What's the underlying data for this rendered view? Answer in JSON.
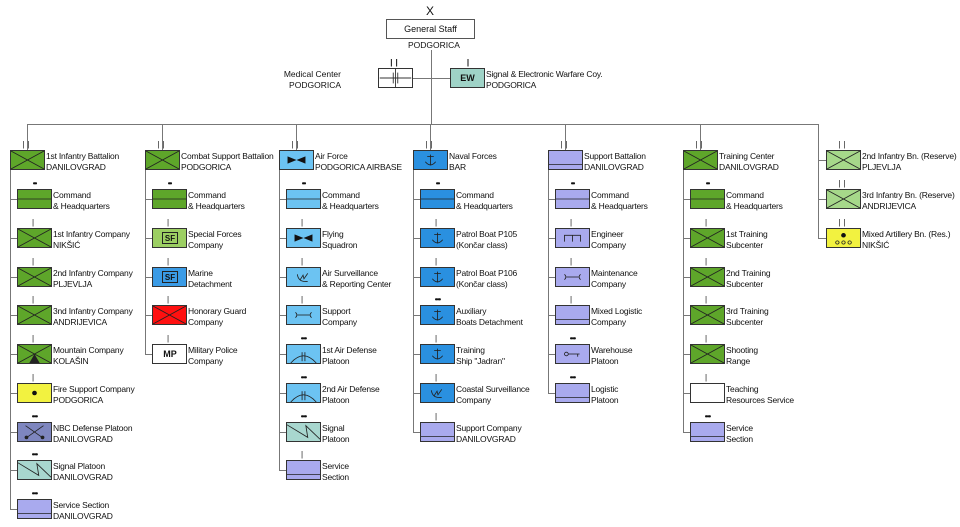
{
  "top": {
    "rank_mark": "X",
    "title": "General Staff",
    "location": "PODGORICA"
  },
  "medical": {
    "lines": [
      "Medical Center",
      "PODGORICA"
    ],
    "symbol": "medical"
  },
  "signal_ew": {
    "lines": [
      "Signal & Electronic Warfare Coy.",
      "PODGORICA"
    ],
    "symbol": "ew",
    "symbol_text": "EW",
    "color": "#9fd3c7"
  },
  "colors": {
    "infantry": "#5ea62a",
    "light_green": "#9ccf63",
    "marine": "#3a9be6",
    "guard": "#ff1010",
    "air": "#6cc3f2",
    "navy": "#2a90e0",
    "support": "#a9aaee",
    "yellow": "#f2f240",
    "nbc": "#7e86bf",
    "signal": "#a8d7cf",
    "reserve": "#a6d88a",
    "white": "#ffffff"
  },
  "columns": [
    {
      "head": {
        "lines": [
          "1st Infantry Battalion",
          "DANILOVGRAD"
        ],
        "symbol": "infantry",
        "color": "#5ea62a",
        "mark": "||"
      },
      "units": [
        {
          "lines": [
            "Command",
            "& Headquarters"
          ],
          "symbol": "hq",
          "color": "#5ea62a",
          "mark": "••"
        },
        {
          "lines": [
            "1st Infantry Company",
            "NIKŠIĆ"
          ],
          "symbol": "infantry",
          "color": "#5ea62a",
          "mark": "|"
        },
        {
          "lines": [
            "2nd Infantry Company",
            "PLJEVLJA"
          ],
          "symbol": "infantry",
          "color": "#5ea62a",
          "mark": "|"
        },
        {
          "lines": [
            "3nd Infantry Company",
            "ANDRIJEVICA"
          ],
          "symbol": "infantry",
          "color": "#5ea62a",
          "mark": "|"
        },
        {
          "lines": [
            "Mountain Company",
            "KOLAŠIN"
          ],
          "symbol": "mountain",
          "color": "#5ea62a",
          "mark": "|"
        },
        {
          "lines": [
            "Fire Support Company",
            "PODGORICA"
          ],
          "symbol": "artillery",
          "color": "#f2f240",
          "mark": "|"
        },
        {
          "lines": [
            "NBC Defense Platoon",
            "DANILOVGRAD"
          ],
          "symbol": "nbc",
          "color": "#7e86bf",
          "mark": "•••"
        },
        {
          "lines": [
            "Signal Platoon",
            "DANILOVGRAD"
          ],
          "symbol": "signal",
          "color": "#a8d7cf",
          "mark": "•••"
        },
        {
          "lines": [
            "Service Section",
            "DANILOVGRAD"
          ],
          "symbol": "service",
          "color": "#a9aaee",
          "mark": "•••"
        }
      ]
    },
    {
      "head": {
        "lines": [
          "Combat Support Battalion",
          "PODGORICA"
        ],
        "symbol": "infantry",
        "color": "#5ea62a",
        "mark": "||"
      },
      "units": [
        {
          "lines": [
            "Command",
            "& Headquarters"
          ],
          "symbol": "hq",
          "color": "#5ea62a",
          "mark": "••"
        },
        {
          "lines": [
            "Special Forces",
            "Company"
          ],
          "symbol": "text",
          "symbol_text": "SF",
          "color": "#9ccf63",
          "mark": "|"
        },
        {
          "lines": [
            "Marine",
            "Detachment"
          ],
          "symbol": "text",
          "symbol_text": "SF",
          "color": "#3a9be6",
          "mark": "|"
        },
        {
          "lines": [
            "Honorary Guard",
            "Company"
          ],
          "symbol": "infantry",
          "color": "#ff1010",
          "mark": "|"
        },
        {
          "lines": [
            "Military Police",
            "Company"
          ],
          "symbol": "text",
          "symbol_text": "MP",
          "color": "#ffffff",
          "mark": "|"
        }
      ]
    },
    {
      "head": {
        "lines": [
          "Air Force",
          "PODGORICA AIRBASE"
        ],
        "symbol": "aviation",
        "color": "#6cc3f2",
        "mark": "||"
      },
      "units": [
        {
          "lines": [
            "Command",
            "& Headquarters"
          ],
          "symbol": "hq",
          "color": "#6cc3f2",
          "mark": "••"
        },
        {
          "lines": [
            "Flying",
            "Squadron"
          ],
          "symbol": "aviation",
          "color": "#6cc3f2",
          "mark": "|"
        },
        {
          "lines": [
            "Air Surveillance",
            "& Reporting Center"
          ],
          "symbol": "radar",
          "color": "#6cc3f2",
          "mark": "|"
        },
        {
          "lines": [
            "Support",
            "Company"
          ],
          "symbol": "maintenance",
          "color": "#6cc3f2",
          "mark": "|"
        },
        {
          "lines": [
            "1st Air Defense",
            "Platoon"
          ],
          "symbol": "airdefense",
          "color": "#6cc3f2",
          "mark": "•••"
        },
        {
          "lines": [
            "2nd Air Defense",
            "Platoon"
          ],
          "symbol": "airdefense",
          "color": "#6cc3f2",
          "mark": "•••"
        },
        {
          "lines": [
            "Signal",
            "Platoon"
          ],
          "symbol": "signal",
          "color": "#a8d7cf",
          "mark": "•••"
        },
        {
          "lines": [
            "Service",
            "Section"
          ],
          "symbol": "service",
          "color": "#a9aaee",
          "mark": "|"
        }
      ]
    },
    {
      "head": {
        "lines": [
          "Naval Forces",
          "BAR"
        ],
        "symbol": "naval",
        "color": "#2a90e0",
        "mark": "||"
      },
      "units": [
        {
          "lines": [
            "Command",
            "& Headquarters"
          ],
          "symbol": "hq",
          "color": "#2a90e0",
          "mark": "••"
        },
        {
          "lines": [
            "Patrol Boat P105",
            "(Končar class)"
          ],
          "symbol": "naval",
          "color": "#2a90e0",
          "mark": "|"
        },
        {
          "lines": [
            "Patrol Boat P106",
            "(Končar class)"
          ],
          "symbol": "naval",
          "color": "#2a90e0",
          "mark": "|"
        },
        {
          "lines": [
            "Auxiliary",
            "Boats Detachment"
          ],
          "symbol": "naval",
          "color": "#2a90e0",
          "mark": "•••"
        },
        {
          "lines": [
            "Training",
            "Ship \"Jadran\""
          ],
          "symbol": "naval",
          "color": "#2a90e0",
          "mark": "|"
        },
        {
          "lines": [
            "Coastal Surveillance",
            "Company"
          ],
          "symbol": "radar",
          "color": "#2a90e0",
          "mark": "|"
        },
        {
          "lines": [
            "Support Company",
            "DANILOVGRAD"
          ],
          "symbol": "service",
          "color": "#a9aaee",
          "mark": "|"
        }
      ]
    },
    {
      "head": {
        "lines": [
          "Support Battalion",
          "DANILOVGRAD"
        ],
        "symbol": "service",
        "color": "#a9aaee",
        "mark": "||"
      },
      "units": [
        {
          "lines": [
            "Command",
            "& Headquarters"
          ],
          "symbol": "hq",
          "color": "#a9aaee",
          "mark": "••"
        },
        {
          "lines": [
            "Engineer",
            "Company"
          ],
          "symbol": "engineer",
          "color": "#a9aaee",
          "mark": "|"
        },
        {
          "lines": [
            "Maintenance",
            "Company"
          ],
          "symbol": "maintenance",
          "color": "#a9aaee",
          "mark": "|"
        },
        {
          "lines": [
            "Mixed Logistic",
            "Company"
          ],
          "symbol": "service",
          "color": "#a9aaee",
          "mark": "|"
        },
        {
          "lines": [
            "Warehouse",
            "Platoon"
          ],
          "symbol": "warehouse",
          "color": "#a9aaee",
          "mark": "•••"
        },
        {
          "lines": [
            "Logistic",
            "Platoon"
          ],
          "symbol": "service",
          "color": "#a9aaee",
          "mark": "•••"
        }
      ]
    },
    {
      "head": {
        "lines": [
          "Training Center",
          "DANILOVGRAD"
        ],
        "symbol": "infantry",
        "color": "#5ea62a",
        "mark": "||"
      },
      "units": [
        {
          "lines": [
            "Command",
            "& Headquarters"
          ],
          "symbol": "hq",
          "color": "#5ea62a",
          "mark": "••"
        },
        {
          "lines": [
            "1st Training",
            "Subcenter"
          ],
          "symbol": "infantry",
          "color": "#5ea62a",
          "mark": "|"
        },
        {
          "lines": [
            "2nd Training",
            "Subcenter"
          ],
          "symbol": "infantry",
          "color": "#5ea62a",
          "mark": "|"
        },
        {
          "lines": [
            "3rd Training",
            "Subcenter"
          ],
          "symbol": "infantry",
          "color": "#5ea62a",
          "mark": "|"
        },
        {
          "lines": [
            "Shooting",
            "Range"
          ],
          "symbol": "infantry",
          "color": "#5ea62a",
          "mark": "|"
        },
        {
          "lines": [
            "Teaching",
            "Resources Service"
          ],
          "symbol": "plain",
          "color": "#ffffff",
          "mark": "|"
        },
        {
          "lines": [
            "Service",
            "Section"
          ],
          "symbol": "service",
          "color": "#a9aaee",
          "mark": "•••"
        }
      ]
    },
    {
      "head": null,
      "units": [
        {
          "lines": [
            "2nd Infantry Bn. (Reserve)",
            "PLJEVLJA"
          ],
          "symbol": "infantry",
          "color": "#a6d88a",
          "mark": "||"
        },
        {
          "lines": [
            "3rd Infantry Bn. (Reserve)",
            "ANDRIJEVICA"
          ],
          "symbol": "infantry",
          "color": "#a6d88a",
          "mark": "||"
        },
        {
          "lines": [
            "Mixed Artillery Bn. (Res.)",
            "NIKŠIĆ"
          ],
          "symbol": "artillery_wheels",
          "color": "#f2f240",
          "mark": "||"
        }
      ]
    }
  ]
}
